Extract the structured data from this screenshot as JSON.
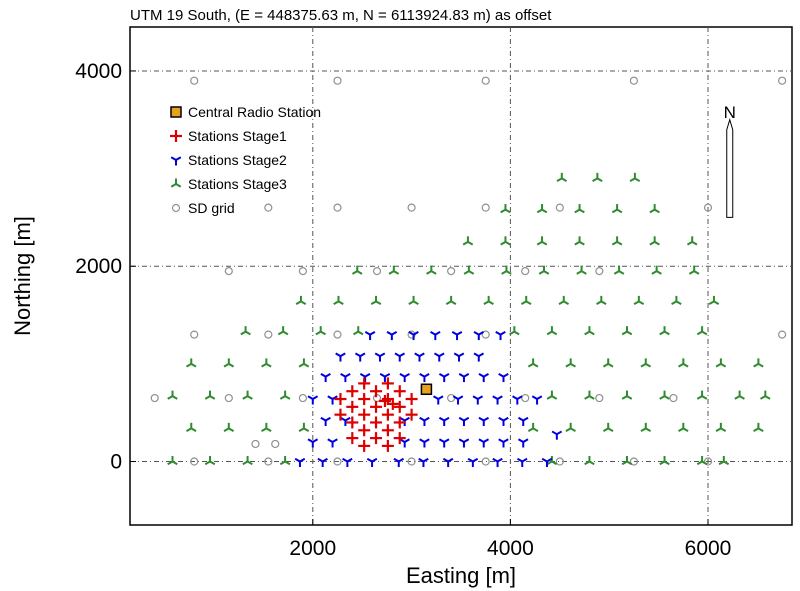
{
  "chart_data": {
    "type": "scatter",
    "title": "UTM 19 South, (E = 448375.63 m, N = 6113924.83 m) as offset",
    "xlabel": "Easting [m]",
    "ylabel": "Northing [m]",
    "xlim": [
      150,
      6850
    ],
    "ylim": [
      -650,
      4450
    ],
    "xticks": [
      2000,
      4000,
      6000
    ],
    "yticks": [
      0,
      2000,
      4000
    ],
    "xtick_labels": [
      "2000",
      "4000",
      "6000"
    ],
    "ytick_labels": [
      "0",
      "2000",
      "4000"
    ],
    "grid": true,
    "legend_position": "top-left",
    "north_arrow": {
      "label": "N",
      "x": 6220,
      "y": 2500,
      "length": 1000
    },
    "series": [
      {
        "name": "Central Radio Station",
        "marker": "square",
        "color": "#E8A020",
        "points": [
          [
            3150,
            740
          ]
        ]
      },
      {
        "name": "Stations Stage1",
        "marker": "plus",
        "color": "#DD0000",
        "points": [
          [
            2520,
            800
          ],
          [
            2760,
            800
          ],
          [
            2400,
            720
          ],
          [
            2640,
            720
          ],
          [
            2880,
            720
          ],
          [
            2280,
            640
          ],
          [
            2520,
            640
          ],
          [
            2760,
            640
          ],
          [
            3000,
            640
          ],
          [
            2400,
            560
          ],
          [
            2640,
            560
          ],
          [
            2880,
            560
          ],
          [
            2280,
            480
          ],
          [
            2520,
            480
          ],
          [
            2760,
            480
          ],
          [
            3000,
            480
          ],
          [
            2400,
            400
          ],
          [
            2640,
            400
          ],
          [
            2880,
            400
          ],
          [
            2520,
            320
          ],
          [
            2760,
            320
          ],
          [
            2400,
            240
          ],
          [
            2640,
            240
          ],
          [
            2880,
            240
          ],
          [
            2520,
            160
          ],
          [
            2760,
            160
          ],
          [
            2730,
            620
          ],
          [
            2810,
            590
          ]
        ]
      },
      {
        "name": "Stations Stage2",
        "marker": "y",
        "color": "#0000DD",
        "points": [
          [
            2580,
            1300
          ],
          [
            2800,
            1300
          ],
          [
            3020,
            1300
          ],
          [
            3240,
            1300
          ],
          [
            3460,
            1300
          ],
          [
            3680,
            1300
          ],
          [
            3900,
            1300
          ],
          [
            2280,
            1080
          ],
          [
            2480,
            1080
          ],
          [
            2680,
            1080
          ],
          [
            2880,
            1080
          ],
          [
            3080,
            1080
          ],
          [
            3280,
            1080
          ],
          [
            3480,
            1080
          ],
          [
            3680,
            1080
          ],
          [
            2130,
            870
          ],
          [
            2330,
            870
          ],
          [
            2530,
            870
          ],
          [
            2730,
            870
          ],
          [
            2930,
            870
          ],
          [
            3130,
            870
          ],
          [
            3330,
            870
          ],
          [
            3530,
            870
          ],
          [
            3730,
            870
          ],
          [
            3930,
            870
          ],
          [
            2000,
            640
          ],
          [
            2200,
            640
          ],
          [
            3270,
            640
          ],
          [
            3470,
            640
          ],
          [
            3670,
            640
          ],
          [
            3870,
            640
          ],
          [
            4070,
            640
          ],
          [
            4270,
            640
          ],
          [
            2130,
            420
          ],
          [
            2330,
            420
          ],
          [
            2930,
            420
          ],
          [
            3130,
            420
          ],
          [
            3330,
            420
          ],
          [
            3530,
            420
          ],
          [
            3730,
            420
          ],
          [
            3930,
            420
          ],
          [
            4130,
            420
          ],
          [
            4470,
            280
          ],
          [
            2000,
            200
          ],
          [
            2200,
            200
          ],
          [
            2930,
            200
          ],
          [
            3130,
            200
          ],
          [
            3330,
            200
          ],
          [
            3530,
            200
          ],
          [
            3730,
            200
          ],
          [
            3930,
            200
          ],
          [
            4130,
            200
          ],
          [
            1870,
            0
          ],
          [
            2100,
            0
          ],
          [
            2350,
            0
          ],
          [
            2600,
            0
          ],
          [
            2870,
            0
          ],
          [
            3120,
            0
          ],
          [
            3370,
            0
          ],
          [
            3620,
            0
          ],
          [
            3870,
            0
          ],
          [
            4120,
            0
          ],
          [
            4370,
            0
          ]
        ]
      },
      {
        "name": "Stations Stage3",
        "marker": "tri",
        "color": "#2E8B2E",
        "points": [
          [
            4520,
            2900
          ],
          [
            4880,
            2900
          ],
          [
            5260,
            2900
          ],
          [
            3950,
            2580
          ],
          [
            4320,
            2580
          ],
          [
            4700,
            2580
          ],
          [
            5080,
            2580
          ],
          [
            5460,
            2580
          ],
          [
            3570,
            2250
          ],
          [
            3950,
            2250
          ],
          [
            4320,
            2250
          ],
          [
            4700,
            2250
          ],
          [
            5080,
            2250
          ],
          [
            5460,
            2250
          ],
          [
            5840,
            2250
          ],
          [
            2450,
            1950
          ],
          [
            2820,
            1950
          ],
          [
            3200,
            1950
          ],
          [
            3580,
            1950
          ],
          [
            3960,
            1950
          ],
          [
            4340,
            1950
          ],
          [
            4720,
            1950
          ],
          [
            5100,
            1950
          ],
          [
            5480,
            1950
          ],
          [
            5860,
            1950
          ],
          [
            1880,
            1640
          ],
          [
            2260,
            1640
          ],
          [
            2640,
            1640
          ],
          [
            3020,
            1640
          ],
          [
            3400,
            1640
          ],
          [
            3780,
            1640
          ],
          [
            4160,
            1640
          ],
          [
            4540,
            1640
          ],
          [
            4920,
            1640
          ],
          [
            5300,
            1640
          ],
          [
            5680,
            1640
          ],
          [
            6060,
            1640
          ],
          [
            1320,
            1330
          ],
          [
            1700,
            1330
          ],
          [
            2080,
            1330
          ],
          [
            2460,
            1330
          ],
          [
            4040,
            1330
          ],
          [
            4420,
            1330
          ],
          [
            4800,
            1330
          ],
          [
            5180,
            1330
          ],
          [
            5560,
            1330
          ],
          [
            5940,
            1330
          ],
          [
            770,
            1000
          ],
          [
            1150,
            1000
          ],
          [
            1530,
            1000
          ],
          [
            1910,
            1000
          ],
          [
            4230,
            1000
          ],
          [
            4610,
            1000
          ],
          [
            4990,
            1000
          ],
          [
            5370,
            1000
          ],
          [
            5750,
            1000
          ],
          [
            6130,
            1000
          ],
          [
            6510,
            1000
          ],
          [
            580,
            670
          ],
          [
            960,
            670
          ],
          [
            1340,
            670
          ],
          [
            1720,
            670
          ],
          [
            4420,
            670
          ],
          [
            4800,
            670
          ],
          [
            5180,
            670
          ],
          [
            5560,
            670
          ],
          [
            5940,
            670
          ],
          [
            6320,
            670
          ],
          [
            6580,
            670
          ],
          [
            770,
            340
          ],
          [
            1150,
            340
          ],
          [
            1530,
            340
          ],
          [
            1910,
            340
          ],
          [
            4230,
            340
          ],
          [
            4610,
            340
          ],
          [
            4990,
            340
          ],
          [
            5370,
            340
          ],
          [
            5750,
            340
          ],
          [
            6130,
            340
          ],
          [
            6510,
            340
          ],
          [
            580,
            0
          ],
          [
            960,
            0
          ],
          [
            1340,
            0
          ],
          [
            1720,
            0
          ],
          [
            4420,
            0
          ],
          [
            4800,
            0
          ],
          [
            5180,
            0
          ],
          [
            5560,
            0
          ],
          [
            5940,
            0
          ],
          [
            6160,
            0
          ]
        ]
      },
      {
        "name": "SD grid",
        "marker": "circle",
        "color": "#909090",
        "points": [
          [
            800,
            3900
          ],
          [
            2250,
            3900
          ],
          [
            3750,
            3900
          ],
          [
            5250,
            3900
          ],
          [
            6750,
            3900
          ],
          [
            1550,
            2600
          ],
          [
            2250,
            2600
          ],
          [
            3000,
            2600
          ],
          [
            3750,
            2600
          ],
          [
            4500,
            2600
          ],
          [
            6000,
            2600
          ],
          [
            1150,
            1950
          ],
          [
            1900,
            1950
          ],
          [
            2650,
            1950
          ],
          [
            3400,
            1950
          ],
          [
            4150,
            1950
          ],
          [
            4900,
            1950
          ],
          [
            800,
            1300
          ],
          [
            1550,
            1300
          ],
          [
            2250,
            1300
          ],
          [
            3000,
            1300
          ],
          [
            3750,
            1300
          ],
          [
            6750,
            1300
          ],
          [
            400,
            650
          ],
          [
            1150,
            650
          ],
          [
            1900,
            650
          ],
          [
            2650,
            650
          ],
          [
            3400,
            650
          ],
          [
            4150,
            650
          ],
          [
            4900,
            650
          ],
          [
            5650,
            650
          ],
          [
            1420,
            180
          ],
          [
            1620,
            180
          ],
          [
            800,
            0
          ],
          [
            1550,
            0
          ],
          [
            2250,
            0
          ],
          [
            3000,
            0
          ],
          [
            3750,
            0
          ],
          [
            4500,
            0
          ],
          [
            5250,
            0
          ],
          [
            6000,
            0
          ]
        ]
      }
    ]
  }
}
